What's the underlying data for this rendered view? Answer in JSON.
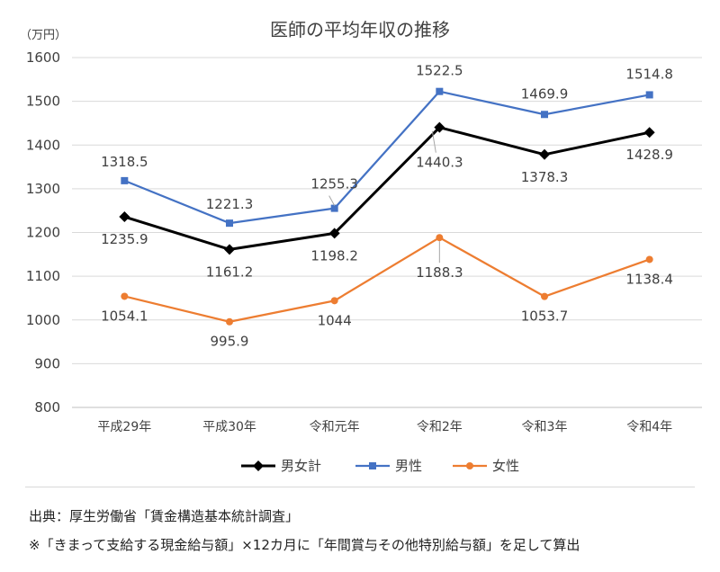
{
  "chart_data": {
    "type": "line",
    "title": "医師の平均年収の推移",
    "ylabel": "（万円）",
    "xlabel": "",
    "ylim": [
      800,
      1600
    ],
    "yticks": [
      800,
      900,
      1000,
      1100,
      1200,
      1300,
      1400,
      1500,
      1600
    ],
    "categories": [
      "平成29年",
      "平成30年",
      "令和元年",
      "令和2年",
      "令和3年",
      "令和4年"
    ],
    "grid": true,
    "legend_position": "bottom",
    "series": [
      {
        "name": "男女計",
        "color": "#000000",
        "marker": "diamond",
        "values": [
          1235.9,
          1161.2,
          1198.2,
          1440.3,
          1378.3,
          1428.9
        ],
        "labels": [
          "1235.9",
          "1161.2",
          "1198.2",
          "1440.3",
          "1378.3",
          "1428.9"
        ]
      },
      {
        "name": "男性",
        "color": "#4472C4",
        "marker": "square",
        "values": [
          1318.5,
          1221.3,
          1255.3,
          1522.5,
          1469.9,
          1514.8
        ],
        "labels": [
          "1318.5",
          "1221.3",
          "1255.3",
          "1522.5",
          "1469.9",
          "1514.8"
        ]
      },
      {
        "name": "女性",
        "color": "#ED7D31",
        "marker": "circle",
        "values": [
          1054.1,
          995.9,
          1044,
          1188.3,
          1053.7,
          1138.4
        ],
        "labels": [
          "1054.1",
          "995.9",
          "1044",
          "1188.3",
          "1053.7",
          "1138.4"
        ]
      }
    ]
  },
  "notes": {
    "source": "出典：厚生労働省「賃金構造基本統計調査」",
    "calculation": "※「きまって支給する現金給与額」×12カ月に「年間賞与その他特別給与額」を足して算出"
  }
}
